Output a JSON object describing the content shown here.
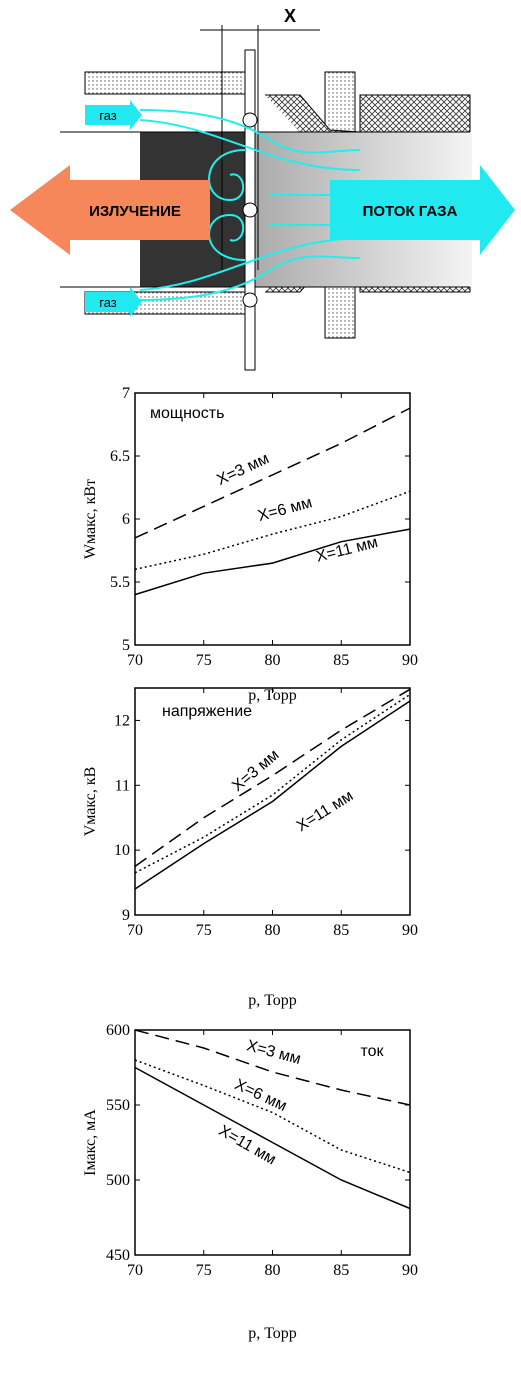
{
  "diagram": {
    "dimension_label": "X",
    "gas_labels": [
      "газ",
      "газ"
    ],
    "left_arrow": "ИЗЛУЧЕНИЕ",
    "right_arrow": "ПОТОК ГАЗА"
  },
  "chart_data": [
    {
      "type": "line",
      "annotation": "мощность",
      "x_label": "p, Торр",
      "y_label": "Wмакс, кВт",
      "x": [
        70,
        75,
        80,
        85,
        90
      ],
      "xlim": [
        70,
        90
      ],
      "xticks": [
        70,
        75,
        80,
        85,
        90
      ],
      "ylim": [
        5,
        7
      ],
      "yticks": [
        5,
        5.5,
        6,
        6.5,
        7
      ],
      "series": [
        {
          "name": "X=3 мм",
          "color": "#000000",
          "style": "dashed",
          "values": [
            5.85,
            6.1,
            6.35,
            6.6,
            6.88
          ]
        },
        {
          "name": "X=6 мм",
          "color": "#000000",
          "style": "dotted",
          "values": [
            5.6,
            5.72,
            5.88,
            6.02,
            6.22
          ]
        },
        {
          "name": "X=11 мм",
          "color": "#000000",
          "style": "solid",
          "values": [
            5.4,
            5.57,
            5.65,
            5.82,
            5.92
          ]
        }
      ]
    },
    {
      "type": "line",
      "annotation": "напряжение",
      "x_label": "p, Торр",
      "y_label": "Vмакс, кВ",
      "x": [
        70,
        75,
        80,
        85,
        90
      ],
      "xlim": [
        70,
        90
      ],
      "xticks": [
        70,
        75,
        80,
        85,
        90
      ],
      "ylim": [
        9,
        12.5
      ],
      "yticks": [
        9,
        10,
        11,
        12
      ],
      "series": [
        {
          "name": "X=3 мм",
          "color": "#000000",
          "style": "dashed",
          "values": [
            9.75,
            10.5,
            11.15,
            11.85,
            12.48
          ]
        },
        {
          "color": "#000000",
          "style": "dotted",
          "values": [
            9.65,
            10.2,
            10.85,
            11.7,
            12.4
          ]
        },
        {
          "name": "X=11 мм",
          "color": "#000000",
          "style": "solid",
          "values": [
            9.4,
            10.1,
            10.75,
            11.6,
            12.3
          ]
        }
      ]
    },
    {
      "type": "line",
      "annotation": "ток",
      "x_label": "p, Торр",
      "y_label": "Iмакс, мА",
      "x": [
        70,
        75,
        80,
        85,
        90
      ],
      "xlim": [
        70,
        90
      ],
      "xticks": [
        70,
        75,
        80,
        85,
        90
      ],
      "ylim": [
        450,
        600
      ],
      "yticks": [
        450,
        500,
        550,
        600
      ],
      "series": [
        {
          "name": "X=3 мм",
          "color": "#000000",
          "style": "dashed",
          "values": [
            600,
            588,
            572,
            560,
            550
          ]
        },
        {
          "name": "X=6 мм",
          "color": "#000000",
          "style": "dotted",
          "values": [
            580,
            563,
            545,
            520,
            505
          ]
        },
        {
          "name": "X=11 мм",
          "color": "#000000",
          "style": "solid",
          "values": [
            575,
            550,
            525,
            500,
            481
          ]
        }
      ]
    }
  ]
}
